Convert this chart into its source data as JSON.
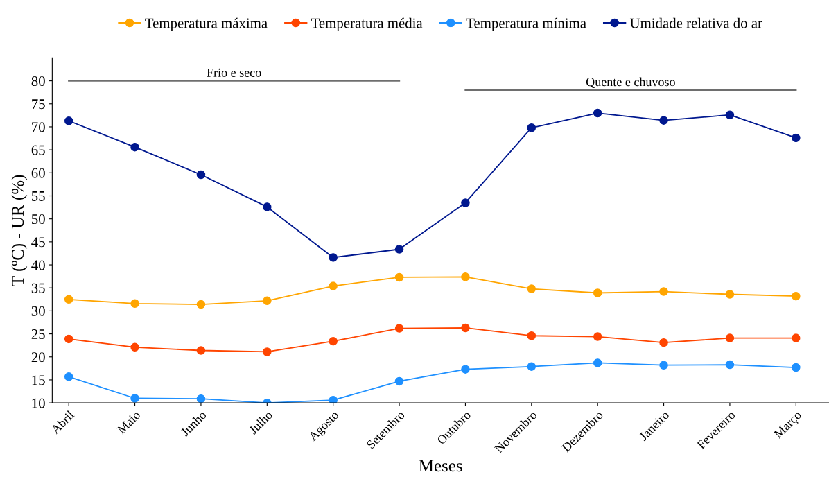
{
  "chart_data": {
    "type": "line",
    "xlabel": "Meses",
    "ylabel": "T (ºC) - UR (%)",
    "categories": [
      "Abril",
      "Maio",
      "Junho",
      "Julho",
      "Agosto",
      "Setembro",
      "Outubro",
      "Novembro",
      "Dezembro",
      "Janeiro",
      "Fevereiro",
      "Março"
    ],
    "series": [
      {
        "name": "Temperatura máxima",
        "color": "#ffa500",
        "values": [
          32.5,
          31.6,
          31.4,
          32.2,
          35.4,
          37.3,
          37.4,
          34.8,
          33.9,
          34.2,
          33.6,
          33.2
        ]
      },
      {
        "name": "Temperatura média",
        "color": "#ff4500",
        "values": [
          23.9,
          22.1,
          21.4,
          21.1,
          23.4,
          26.2,
          26.3,
          24.6,
          24.4,
          23.1,
          24.1,
          24.1
        ]
      },
      {
        "name": "Temperatura mínima",
        "color": "#1e90ff",
        "values": [
          15.7,
          11.0,
          10.9,
          10.0,
          10.6,
          14.7,
          17.3,
          17.9,
          18.7,
          18.2,
          18.3,
          17.7
        ]
      },
      {
        "name": "Umidade relativa do ar",
        "color": "#00188f",
        "values": [
          71.3,
          65.6,
          59.6,
          52.6,
          41.6,
          43.4,
          53.5,
          69.8,
          73.0,
          71.4,
          72.6,
          67.6
        ]
      },
      {
        "name": "Frio e seco",
        "color": "#6e6e6e",
        "marker": "none",
        "values": [
          80,
          80,
          80,
          80,
          80,
          80,
          null,
          null,
          null,
          null,
          null,
          null
        ]
      },
      {
        "name": "Quente e chuvoso",
        "color": "#6e6e6e",
        "marker": "none",
        "values": [
          null,
          null,
          null,
          null,
          null,
          null,
          78,
          78,
          78,
          78,
          78,
          78
        ]
      }
    ],
    "ylim": [
      10,
      85
    ],
    "yticks": [
      10,
      15,
      20,
      25,
      30,
      35,
      40,
      45,
      50,
      55,
      60,
      65,
      70,
      75,
      80
    ],
    "marker": "circle",
    "line_style": "solid",
    "grid": false,
    "legend": "top"
  }
}
